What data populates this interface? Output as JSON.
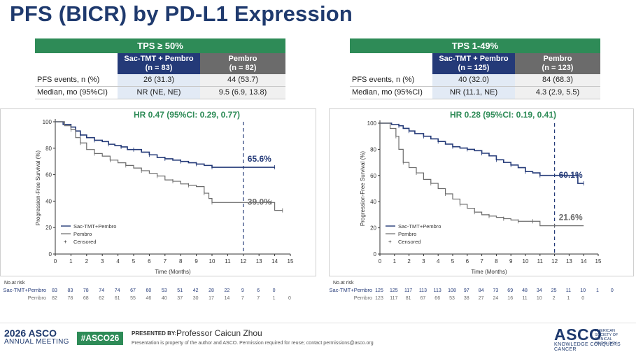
{
  "title": "PFS (BICR) by PD-L1 Expression",
  "panels": [
    {
      "subgroup": "TPS ≥ 50%",
      "col1": {
        "name": "Sac-TMT + Pembro",
        "n": "(n = 83)"
      },
      "col2": {
        "name": "Pembro",
        "n": "(n = 82)"
      },
      "rows": [
        {
          "label": "PFS events, n (%)",
          "v1": "26 (31.3)",
          "v2": "44 (53.7)"
        },
        {
          "label": "Median, mo (95%CI)",
          "v1": "NR (NE, NE)",
          "v2": "9.5 (6.9, 13.8)"
        }
      ],
      "hr": "HR 0.47 (95%CI: 0.29, 0.77)",
      "label1": "65.6%",
      "label2": "39.0%",
      "legend": [
        "Sac-TMT+Pembro",
        "Pembro",
        "Censored"
      ],
      "xlabel": "Time (Months)",
      "ylabel": "Progression-Free Survival (%)",
      "risk_title": "No.at risk",
      "risk_names": [
        "Sac-TMT+Pembro",
        "Pembro"
      ],
      "risk1": [
        "83",
        "83",
        "78",
        "74",
        "74",
        "67",
        "60",
        "53",
        "51",
        "42",
        "28",
        "22",
        "9",
        "6",
        "0"
      ],
      "risk2": [
        "82",
        "78",
        "68",
        "62",
        "61",
        "55",
        "46",
        "40",
        "37",
        "30",
        "17",
        "14",
        "7",
        "7",
        "1",
        "0"
      ]
    },
    {
      "subgroup": "TPS 1-49%",
      "col1": {
        "name": "Sac-TMT + Pembro",
        "n": "(n = 125)"
      },
      "col2": {
        "name": "Pembro",
        "n": "(n = 123)"
      },
      "rows": [
        {
          "label": "PFS events, n (%)",
          "v1": "40 (32.0)",
          "v2": "84 (68.3)"
        },
        {
          "label": "Median, mo (95%CI)",
          "v1": "NR (11.1, NE)",
          "v2": "4.3 (2.9, 5.5)"
        }
      ],
      "hr": "HR 0.28 (95%CI: 0.19, 0.41)",
      "label1": "60.1%",
      "label2": "21.6%",
      "legend": [
        "Sac-TMT+Pembro",
        "Pembro",
        "Censored"
      ],
      "xlabel": "Time (Months)",
      "ylabel": "Progression-Free Survival (%)",
      "risk_title": "No.at risk",
      "risk_names": [
        "Sac-TMT+Pembro",
        "Pembro"
      ],
      "risk1": [
        "125",
        "125",
        "117",
        "113",
        "113",
        "108",
        "97",
        "84",
        "73",
        "69",
        "48",
        "34",
        "25",
        "11",
        "10",
        "1",
        "0"
      ],
      "risk2": [
        "123",
        "117",
        "81",
        "67",
        "66",
        "53",
        "38",
        "27",
        "24",
        "16",
        "11",
        "10",
        "2",
        "1",
        "0"
      ]
    }
  ],
  "chart_data": [
    {
      "type": "line",
      "title": "HR 0.47 (95%CI: 0.29, 0.77)",
      "xlabel": "Time (Months)",
      "ylabel": "Progression-Free Survival (%)",
      "xlim": [
        0,
        15
      ],
      "ylim": [
        0,
        100
      ],
      "x_ticks": [
        0,
        1,
        2,
        3,
        4,
        5,
        6,
        7,
        8,
        9,
        10,
        11,
        12,
        13,
        14,
        15
      ],
      "y_ticks": [
        0,
        20,
        40,
        60,
        80,
        100
      ],
      "landmark_month": 12,
      "series": [
        {
          "name": "Sac-TMT+Pembro",
          "color": "#243a78",
          "x": [
            0,
            0.5,
            1,
            1.3,
            1.6,
            2,
            2.5,
            3,
            3.4,
            3.8,
            4.2,
            4.6,
            5,
            5.5,
            6,
            6.5,
            7,
            7.5,
            8,
            8.5,
            9,
            9.5,
            10,
            12,
            14
          ],
          "y": [
            100,
            98,
            96,
            93,
            90,
            88,
            86,
            85,
            83,
            82,
            81,
            79,
            79,
            77,
            75,
            73,
            72,
            71,
            70,
            69,
            68,
            67,
            65.6,
            65.6,
            65.6
          ]
        },
        {
          "name": "Pembro",
          "color": "#6b6b6b",
          "x": [
            0,
            0.6,
            1,
            1.3,
            1.6,
            2,
            2.5,
            3,
            3.5,
            4,
            4.5,
            5,
            5.5,
            6,
            6.5,
            7,
            7.5,
            8,
            8.5,
            9,
            9.5,
            9.8,
            10,
            12,
            13.8,
            14,
            14.5
          ],
          "y": [
            100,
            97,
            94,
            88,
            84,
            79,
            76,
            74,
            71,
            69,
            67,
            65,
            63,
            61,
            59,
            56,
            55,
            53,
            52,
            51,
            46,
            42,
            39,
            39,
            39,
            33,
            33
          ]
        }
      ],
      "annotations": [
        "65.6%",
        "39.0%"
      ]
    },
    {
      "type": "line",
      "title": "HR 0.28 (95%CI: 0.19, 0.41)",
      "xlabel": "Time (Months)",
      "ylabel": "Progression-Free Survival (%)",
      "xlim": [
        0,
        15
      ],
      "ylim": [
        0,
        100
      ],
      "x_ticks": [
        0,
        1,
        2,
        3,
        4,
        5,
        6,
        7,
        8,
        9,
        10,
        11,
        12,
        13,
        14,
        15
      ],
      "y_ticks": [
        0,
        20,
        40,
        60,
        80,
        100
      ],
      "landmark_month": 12,
      "series": [
        {
          "name": "Sac-TMT+Pembro",
          "color": "#243a78",
          "x": [
            0,
            0.8,
            1.3,
            1.6,
            2,
            2.4,
            3,
            3.5,
            4,
            4.5,
            5,
            5.5,
            6,
            6.5,
            7,
            7.5,
            8,
            8.5,
            9,
            9.5,
            10,
            10.5,
            11,
            12,
            13.5,
            13.6,
            14
          ],
          "y": [
            100,
            99,
            98,
            96,
            94,
            92,
            90,
            88,
            86,
            84,
            82,
            81,
            80,
            79,
            77,
            75,
            72,
            70,
            68,
            66,
            63,
            62,
            60.1,
            60.1,
            60.1,
            54,
            54
          ]
        },
        {
          "name": "Pembro",
          "color": "#6b6b6b",
          "x": [
            0,
            0.7,
            1.1,
            1.3,
            1.6,
            2,
            2.5,
            3,
            3.5,
            4,
            4.5,
            5,
            5.5,
            6,
            6.5,
            7,
            7.5,
            8,
            8.5,
            9,
            9.5,
            10,
            10.5,
            11,
            12,
            14
          ],
          "y": [
            100,
            96,
            90,
            80,
            70,
            66,
            62,
            57,
            54,
            50,
            46,
            42,
            38,
            35,
            32,
            30,
            29,
            28,
            27,
            26,
            25,
            25,
            25,
            21.6,
            21.6,
            21.6
          ]
        }
      ],
      "annotations": [
        "60.1%",
        "21.6%"
      ]
    }
  ],
  "footer": {
    "asco_year": "2026 ASCO",
    "annual_meeting": "ANNUAL MEETING",
    "hashtag": "#ASCO26",
    "presented_by": "PRESENTED BY:",
    "presenter": "Professor Caicun Zhou",
    "notice": "Presentation is property of the author and ASCO. Permission required for reuse; contact permissions@asco.org",
    "asco_logo": "ASCO",
    "society": "AMERICAN SOCIETY OF CLINICAL ONCOLOGY",
    "tagline": "KNOWLEDGE CONQUERS CANCER"
  }
}
